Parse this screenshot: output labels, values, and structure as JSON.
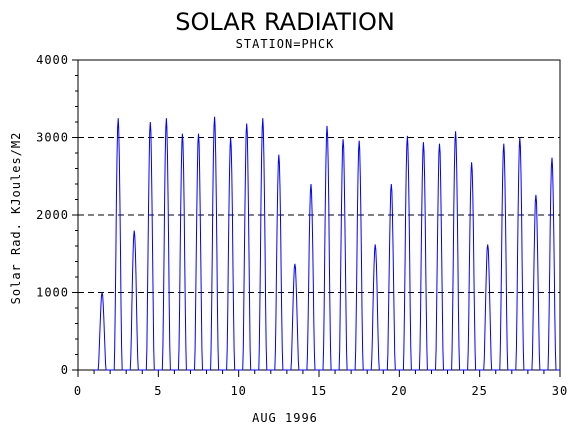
{
  "chart_data": {
    "type": "line",
    "title": "SOLAR RADIATION",
    "subtitle": "STATION=PHCK",
    "xlabel": "AUG 1996",
    "ylabel": "Solar Rad. KJoules/M2",
    "xlim": [
      0,
      30
    ],
    "ylim": [
      0,
      4000
    ],
    "x_ticks": [
      "0",
      "5",
      "10",
      "15",
      "20",
      "25",
      "30"
    ],
    "y_ticks": [
      "0",
      "1000",
      "2000",
      "3000",
      "4000"
    ],
    "grid": "horizontal dashed at y ticks",
    "series": [
      {
        "color": "#0000ff",
        "daily_peaks": [
          {
            "day": 1.5,
            "peak": 1000
          },
          {
            "day": 2.5,
            "peak": 3250
          },
          {
            "day": 3.5,
            "peak": 1800
          },
          {
            "day": 4.5,
            "peak": 3200
          },
          {
            "day": 5.5,
            "peak": 3250
          },
          {
            "day": 6.5,
            "peak": 3050
          },
          {
            "day": 7.5,
            "peak": 3050
          },
          {
            "day": 8.5,
            "peak": 3270
          },
          {
            "day": 9.5,
            "peak": 3000
          },
          {
            "day": 10.5,
            "peak": 3180
          },
          {
            "day": 11.5,
            "peak": 3250
          },
          {
            "day": 12.5,
            "peak": 2780
          },
          {
            "day": 13.5,
            "peak": 1370
          },
          {
            "day": 14.5,
            "peak": 2400
          },
          {
            "day": 15.5,
            "peak": 3150
          },
          {
            "day": 16.5,
            "peak": 2980
          },
          {
            "day": 17.5,
            "peak": 2960
          },
          {
            "day": 18.5,
            "peak": 1620
          },
          {
            "day": 19.5,
            "peak": 2400
          },
          {
            "day": 20.5,
            "peak": 3020
          },
          {
            "day": 21.5,
            "peak": 2940
          },
          {
            "day": 22.5,
            "peak": 2920
          },
          {
            "day": 23.5,
            "peak": 3080
          },
          {
            "day": 24.5,
            "peak": 2680
          },
          {
            "day": 25.5,
            "peak": 1620
          },
          {
            "day": 26.5,
            "peak": 2920
          },
          {
            "day": 27.5,
            "peak": 3000
          },
          {
            "day": 28.5,
            "peak": 2260
          },
          {
            "day": 29.5,
            "peak": 2740
          }
        ]
      }
    ]
  }
}
